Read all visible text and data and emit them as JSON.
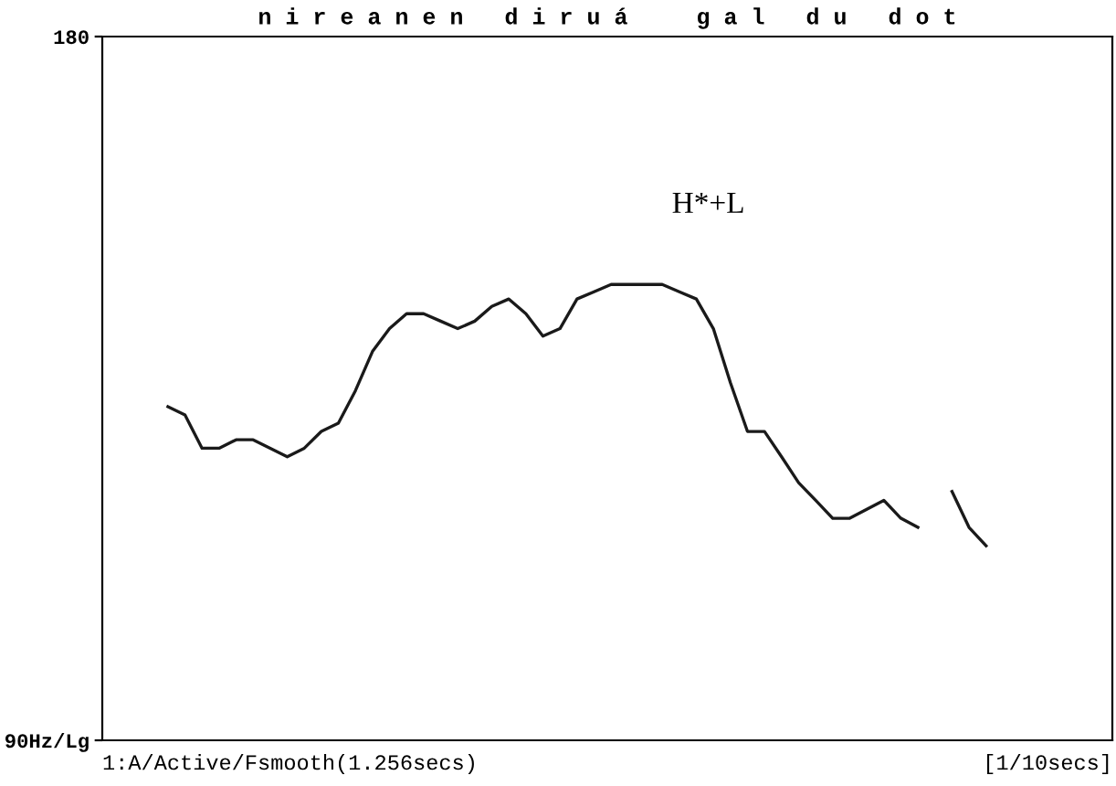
{
  "chart_data": {
    "type": "line",
    "title": "n i r e a n e n   d i r u á     g a l   d u   d o t",
    "categories": [
      null,
      null,
      null,
      null,
      null,
      null,
      null,
      null,
      null,
      null,
      null,
      null,
      null,
      null,
      null,
      null,
      null,
      null,
      null,
      null,
      null,
      null,
      null,
      null,
      null,
      null,
      null,
      null,
      null,
      null,
      null,
      null,
      null,
      null,
      null,
      null,
      null,
      null,
      null,
      null,
      null,
      null,
      null,
      null,
      null,
      null,
      null,
      null,
      null
    ],
    "series": [
      {
        "color": "#1a1a1a",
        "values": [
          125,
          124,
          120,
          120,
          121,
          121,
          120,
          119,
          120,
          122,
          123,
          127,
          132,
          135,
          137,
          137,
          136,
          135,
          136,
          138,
          139,
          137,
          134,
          135,
          139,
          140,
          141,
          141,
          141,
          141,
          140,
          139,
          135,
          128,
          122,
          122,
          119,
          116,
          114,
          112,
          112,
          113,
          114,
          112,
          111,
          null,
          null,
          null,
          null
        ]
      },
      {
        "color": "#1a1a1a",
        "values": [
          null,
          null,
          null,
          null,
          null,
          null,
          null,
          null,
          null,
          null,
          null,
          null,
          null,
          null,
          null,
          null,
          null,
          null,
          null,
          null,
          null,
          null,
          null,
          null,
          null,
          null,
          null,
          null,
          null,
          null,
          null,
          null,
          null,
          null,
          null,
          null,
          null,
          null,
          null,
          null,
          null,
          null,
          null,
          null,
          null,
          null,
          115,
          111,
          109
        ]
      }
    ],
    "ylim": [
      90,
      180
    ],
    "yticks": [
      {
        "value": 180,
        "label": "180"
      },
      {
        "value": 90,
        "label": "90Hz/Lg"
      }
    ],
    "log": "y",
    "annotations": [
      "H*+L",
      "1:A/Active/Fsmooth(1.256secs)",
      "[1/10secs]"
    ]
  }
}
